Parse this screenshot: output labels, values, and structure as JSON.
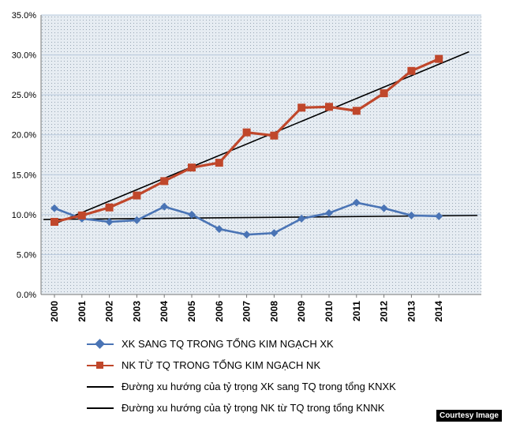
{
  "chart_data": {
    "type": "line",
    "title": "",
    "xlabel": "",
    "ylabel": "",
    "x": [
      "2000",
      "2001",
      "2002",
      "2003",
      "2004",
      "2005",
      "2006",
      "2007",
      "2008",
      "2009",
      "2010",
      "2011",
      "2012",
      "2013",
      "2014"
    ],
    "ylim": [
      0,
      35
    ],
    "y_ticks": [
      "0.0%",
      "5.0%",
      "10.0%",
      "15.0%",
      "20.0%",
      "25.0%",
      "30.0%",
      "35.0%"
    ],
    "grid": true,
    "legend_position": "bottom",
    "series": [
      {
        "name": "XK SANG TQ TRONG TỔNG KIM NGẠCH XK",
        "color": "#4a74b5",
        "marker": "diamond",
        "values": [
          10.8,
          9.5,
          9.1,
          9.3,
          11.0,
          10.0,
          8.2,
          7.5,
          7.7,
          9.5,
          10.2,
          11.5,
          10.8,
          9.9,
          9.8
        ]
      },
      {
        "name": "NK TỪ TQ TRONG TỔNG KIM NGẠCH NK",
        "color": "#c0472b",
        "marker": "square",
        "values": [
          9.1,
          9.9,
          10.9,
          12.4,
          14.2,
          15.9,
          16.5,
          20.3,
          19.9,
          23.4,
          23.5,
          23.0,
          25.2,
          28.0,
          29.5
        ]
      },
      {
        "name": "Đường xu hướng của tỷ trọng XK sang TQ trong tổng KNXK",
        "color": "#000000",
        "marker": "none",
        "trend_start": [
          -0.4,
          9.4
        ],
        "trend_end": [
          15.4,
          9.9
        ]
      },
      {
        "name": "Đường xu hướng của tỷ trọng NK từ TQ trong tổng KNNK",
        "color": "#000000",
        "marker": "none",
        "trend_start": [
          -0.1,
          8.7
        ],
        "trend_end": [
          15.1,
          30.4
        ]
      }
    ]
  },
  "credit": "Courtesy Image"
}
